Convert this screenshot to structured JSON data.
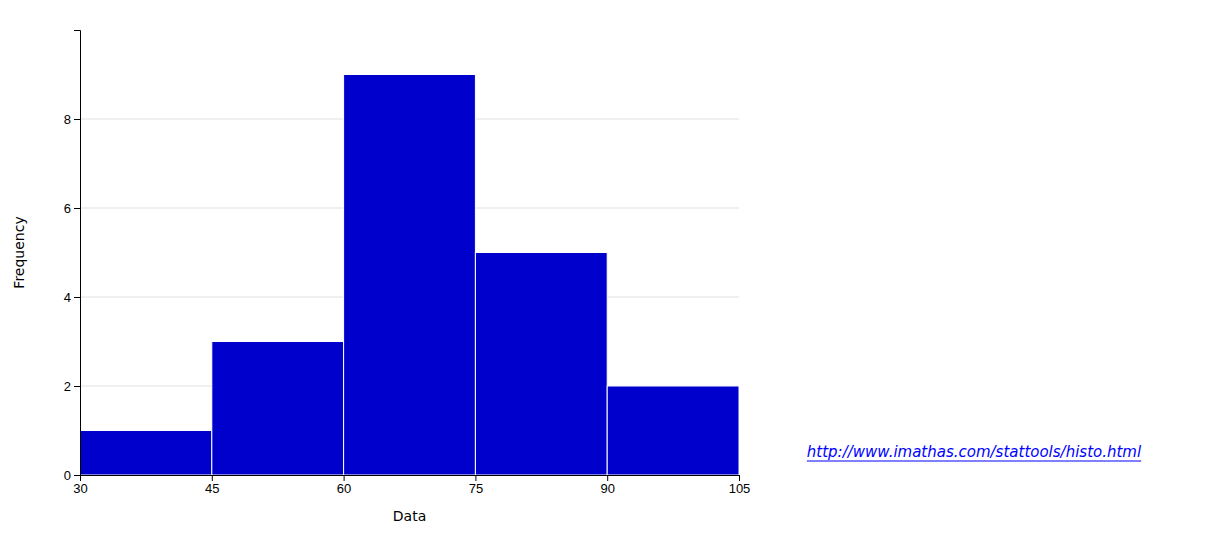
{
  "chart_data": {
    "type": "histogram",
    "bins": [
      30,
      45,
      60,
      75,
      90,
      105
    ],
    "values": [
      1,
      3,
      9,
      5,
      2
    ],
    "color": "#0000CC",
    "xlabel": "Data",
    "ylabel": "Frequency",
    "xlim": [
      30,
      105
    ],
    "ylim": [
      0,
      10
    ],
    "xticks": [
      30,
      45,
      60,
      75,
      90,
      105
    ],
    "yticks": [
      0,
      2,
      4,
      6,
      8
    ],
    "grid": true,
    "annotations": [
      {
        "text": "http://www.imathas.com/stattools/histo.html",
        "color": "#0000FF"
      }
    ]
  }
}
